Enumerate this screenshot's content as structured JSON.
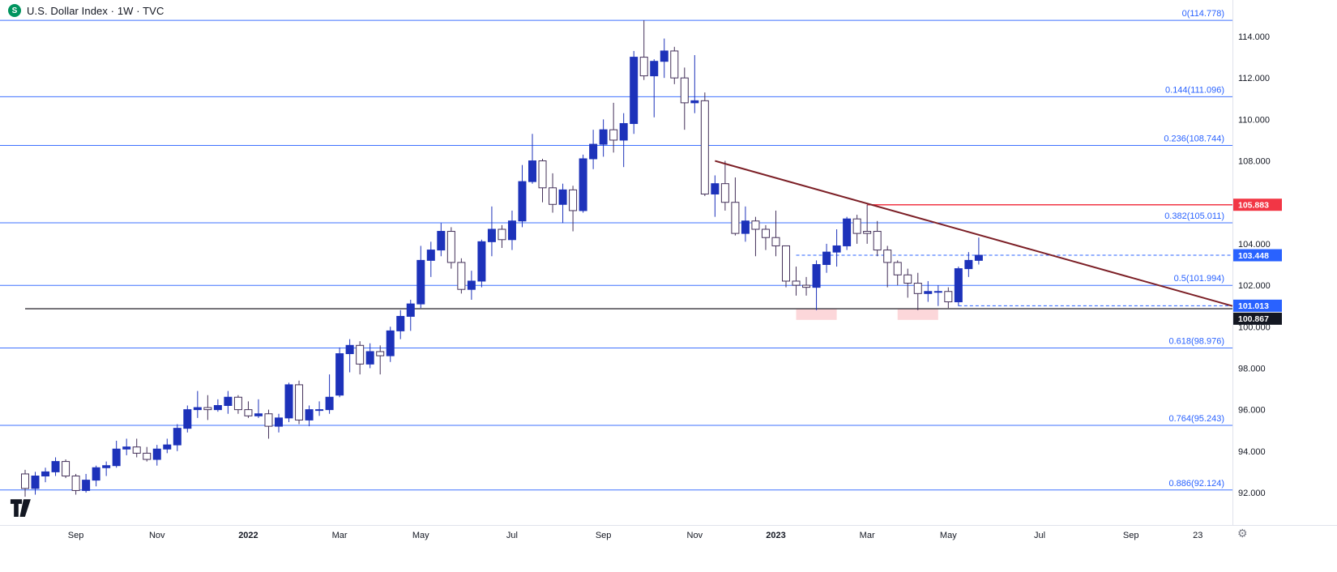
{
  "legend": {
    "logo_letter": "S",
    "title": "U.S. Dollar Index · 1W · TVC"
  },
  "icons": {
    "settings": "⚙",
    "source_logo": "green-circle-S",
    "watermark": "tradingview-logo"
  },
  "colors": {
    "up_candle": "#1d32ba",
    "down_candle_border": "#433059",
    "down_candle_fill": "#ffffff",
    "fib_line": "#2962ff",
    "fib_label": "#2962ff",
    "axis_text": "#131722",
    "separator": "#e0e3eb",
    "trendline": "#7c1f26",
    "zone_fill": "rgba(242,54,69,0.20)",
    "badge_text": "#ffffff",
    "source_logo_bg": "#00945e",
    "watermark_color": "#131722"
  },
  "chart_data": {
    "type": "candlestick",
    "title": "U.S. Dollar Index",
    "timeframe": "1W",
    "source": "TVC",
    "current_price": 103.448,
    "y_axis": {
      "tick_min": 92,
      "tick_max": 116,
      "tick_step": 2,
      "decimals": 3
    },
    "x_ticks": [
      {
        "label": "Sep",
        "index": 5
      },
      {
        "label": "Nov",
        "index": 13
      },
      {
        "label": "2022",
        "index": 22,
        "bold": true
      },
      {
        "label": "Mar",
        "index": 31
      },
      {
        "label": "May",
        "index": 39
      },
      {
        "label": "Jul",
        "index": 48
      },
      {
        "label": "Sep",
        "index": 57
      },
      {
        "label": "Nov",
        "index": 66
      },
      {
        "label": "2023",
        "index": 74,
        "bold": true
      },
      {
        "label": "Mar",
        "index": 83
      },
      {
        "label": "May",
        "index": 91
      },
      {
        "label": "Jul",
        "index": 100
      },
      {
        "label": "Sep",
        "index": 109
      },
      {
        "label": "23",
        "index": 115.6
      }
    ],
    "fib_levels": [
      {
        "label": "0(114.778)",
        "price": 114.778
      },
      {
        "label": "0.144(111.096)",
        "price": 111.096
      },
      {
        "label": "0.236(108.744)",
        "price": 108.744
      },
      {
        "label": "0.382(105.011)",
        "price": 105.011
      },
      {
        "label": "0.5(101.994)",
        "price": 101.994
      },
      {
        "label": "0.618(98.976)",
        "price": 98.976
      },
      {
        "label": "0.764(95.243)",
        "price": 95.243
      },
      {
        "label": "0.886(92.124)",
        "price": 92.124
      }
    ],
    "price_lines": [
      {
        "label": "105.883",
        "price": 105.883,
        "style": "solid",
        "color": "#f23645",
        "badge_bg": "#f23645",
        "from_index": 83,
        "width": 1.5
      },
      {
        "label": "103.448",
        "price": 103.448,
        "style": "dashed",
        "color": "#2962ff",
        "badge_bg": "#2962ff",
        "from_index": 76,
        "width": 1
      },
      {
        "label": "101.013",
        "price": 101.013,
        "style": "dashed",
        "color": "#2962ff",
        "badge_bg": "#2962ff",
        "from_index": 92,
        "width": 1
      },
      {
        "label": "100.867",
        "price": 100.867,
        "style": "solid",
        "color": "#37343c",
        "badge_bg": "#131722",
        "from_index": 0,
        "width": 1.3
      }
    ],
    "trendline": {
      "from_index": 68,
      "from_price": 108.0,
      "to_price": 101.0
    },
    "zones": [
      {
        "from_index": 76,
        "to_index": 80,
        "top_price": 100.87,
        "bottom_price": 100.33
      },
      {
        "from_index": 86,
        "to_index": 90,
        "top_price": 100.87,
        "bottom_price": 100.33
      }
    ],
    "candles": [
      [
        92.9,
        93.1,
        91.8,
        92.2
      ],
      [
        92.2,
        93.0,
        91.9,
        92.8
      ],
      [
        92.8,
        93.2,
        92.5,
        93.0
      ],
      [
        93.0,
        93.7,
        92.8,
        93.5
      ],
      [
        93.5,
        93.6,
        92.7,
        92.8
      ],
      [
        92.8,
        92.9,
        91.9,
        92.1
      ],
      [
        92.1,
        92.9,
        92.0,
        92.6
      ],
      [
        92.6,
        93.3,
        92.3,
        93.2
      ],
      [
        93.2,
        93.5,
        92.8,
        93.3
      ],
      [
        93.3,
        94.5,
        93.2,
        94.1
      ],
      [
        94.1,
        94.6,
        93.8,
        94.2
      ],
      [
        94.2,
        94.6,
        93.7,
        93.9
      ],
      [
        93.9,
        94.2,
        93.5,
        93.6
      ],
      [
        93.6,
        94.3,
        93.3,
        94.1
      ],
      [
        94.1,
        94.6,
        93.9,
        94.3
      ],
      [
        94.3,
        95.3,
        94.0,
        95.1
      ],
      [
        95.1,
        96.2,
        94.9,
        96.0
      ],
      [
        96.0,
        96.9,
        95.6,
        96.1
      ],
      [
        96.1,
        96.7,
        95.5,
        96.0
      ],
      [
        96.0,
        96.5,
        95.9,
        96.2
      ],
      [
        96.2,
        96.9,
        95.8,
        96.6
      ],
      [
        96.6,
        96.7,
        95.8,
        96.0
      ],
      [
        96.0,
        96.4,
        95.6,
        95.7
      ],
      [
        95.7,
        96.5,
        95.6,
        95.8
      ],
      [
        95.8,
        96.0,
        94.6,
        95.2
      ],
      [
        95.2,
        95.8,
        94.9,
        95.6
      ],
      [
        95.6,
        97.3,
        95.4,
        97.2
      ],
      [
        97.2,
        97.4,
        95.3,
        95.5
      ],
      [
        95.5,
        96.2,
        95.2,
        96.0
      ],
      [
        96.0,
        96.4,
        95.7,
        96.0
      ],
      [
        96.0,
        97.7,
        95.8,
        96.6
      ],
      [
        96.7,
        99.0,
        96.6,
        98.7
      ],
      [
        98.7,
        99.4,
        97.8,
        99.1
      ],
      [
        99.1,
        99.3,
        97.7,
        98.2
      ],
      [
        98.2,
        99.2,
        98.0,
        98.8
      ],
      [
        98.8,
        99.1,
        97.7,
        98.6
      ],
      [
        98.6,
        100.0,
        98.3,
        99.8
      ],
      [
        99.8,
        100.8,
        99.4,
        100.5
      ],
      [
        100.5,
        101.3,
        99.8,
        101.1
      ],
      [
        101.1,
        103.9,
        100.9,
        103.2
      ],
      [
        103.2,
        104.1,
        102.4,
        103.7
      ],
      [
        103.7,
        105.0,
        103.4,
        104.6
      ],
      [
        104.6,
        104.8,
        102.8,
        103.1
      ],
      [
        103.1,
        103.3,
        101.6,
        101.8
      ],
      [
        101.8,
        102.7,
        101.3,
        102.2
      ],
      [
        102.2,
        104.2,
        101.9,
        104.1
      ],
      [
        104.1,
        105.8,
        103.4,
        104.7
      ],
      [
        104.7,
        104.9,
        103.8,
        104.2
      ],
      [
        104.2,
        105.6,
        103.7,
        105.1
      ],
      [
        105.1,
        107.8,
        104.8,
        107.0
      ],
      [
        107.0,
        109.3,
        106.9,
        108.0
      ],
      [
        108.0,
        108.1,
        106.0,
        106.7
      ],
      [
        106.7,
        107.4,
        105.5,
        105.9
      ],
      [
        105.9,
        106.9,
        105.0,
        106.6
      ],
      [
        106.6,
        106.8,
        104.6,
        105.6
      ],
      [
        105.6,
        108.3,
        105.5,
        108.1
      ],
      [
        108.1,
        109.5,
        107.6,
        108.8
      ],
      [
        108.8,
        110.0,
        108.2,
        109.5
      ],
      [
        109.5,
        110.8,
        108.4,
        109.0
      ],
      [
        109.0,
        110.3,
        107.7,
        109.8
      ],
      [
        109.8,
        113.3,
        109.3,
        113.0
      ],
      [
        113.0,
        114.778,
        111.9,
        112.1
      ],
      [
        112.1,
        112.9,
        110.1,
        112.8
      ],
      [
        112.8,
        113.9,
        112.0,
        113.3
      ],
      [
        113.3,
        113.5,
        111.7,
        112.0
      ],
      [
        112.0,
        112.5,
        109.5,
        110.8
      ],
      [
        110.8,
        113.1,
        110.3,
        110.9
      ],
      [
        110.9,
        111.3,
        106.3,
        106.4
      ],
      [
        106.4,
        107.3,
        105.3,
        106.9
      ],
      [
        106.9,
        108.0,
        105.6,
        106.0
      ],
      [
        106.0,
        107.2,
        104.4,
        104.5
      ],
      [
        104.5,
        105.8,
        104.1,
        105.1
      ],
      [
        105.1,
        105.3,
        103.4,
        104.7
      ],
      [
        104.7,
        104.9,
        103.7,
        104.3
      ],
      [
        104.3,
        105.6,
        103.4,
        103.9
      ],
      [
        103.9,
        103.9,
        101.9,
        102.2
      ],
      [
        102.2,
        102.9,
        101.5,
        102.0
      ],
      [
        102.0,
        102.4,
        101.5,
        101.9
      ],
      [
        101.9,
        103.2,
        100.8,
        103.0
      ],
      [
        103.0,
        104.0,
        102.6,
        103.6
      ],
      [
        103.6,
        104.7,
        102.9,
        103.9
      ],
      [
        103.9,
        105.3,
        103.7,
        105.2
      ],
      [
        105.2,
        105.4,
        104.0,
        104.5
      ],
      [
        104.6,
        105.883,
        104.0,
        104.5
      ],
      [
        104.6,
        105.1,
        103.4,
        103.7
      ],
      [
        103.7,
        103.9,
        101.9,
        103.1
      ],
      [
        103.1,
        103.2,
        102.0,
        102.5
      ],
      [
        102.5,
        102.8,
        101.4,
        102.1
      ],
      [
        102.1,
        102.6,
        100.8,
        101.6
      ],
      [
        101.6,
        102.2,
        101.2,
        101.7
      ],
      [
        101.7,
        102.0,
        101.0,
        101.7
      ],
      [
        101.7,
        101.9,
        100.9,
        101.2
      ],
      [
        101.2,
        102.9,
        101.0,
        102.8
      ],
      [
        102.8,
        103.6,
        102.4,
        103.2
      ],
      [
        103.2,
        104.3,
        103.0,
        103.448
      ]
    ]
  }
}
